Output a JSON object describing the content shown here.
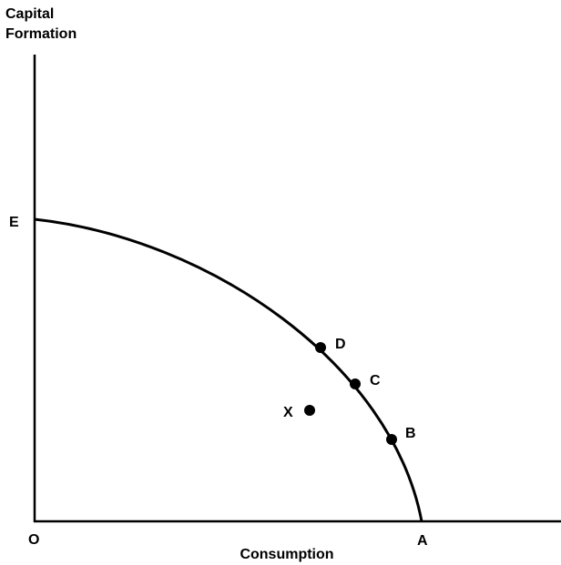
{
  "y_axis_label": [
    "Capital",
    "Formation"
  ],
  "x_axis_label": "Consumption",
  "origin": "O",
  "curve_ends": {
    "top": "E",
    "bottom": "A"
  },
  "points": [
    {
      "label": "D"
    },
    {
      "label": "C"
    },
    {
      "label": "B"
    },
    {
      "label": "X"
    }
  ]
}
